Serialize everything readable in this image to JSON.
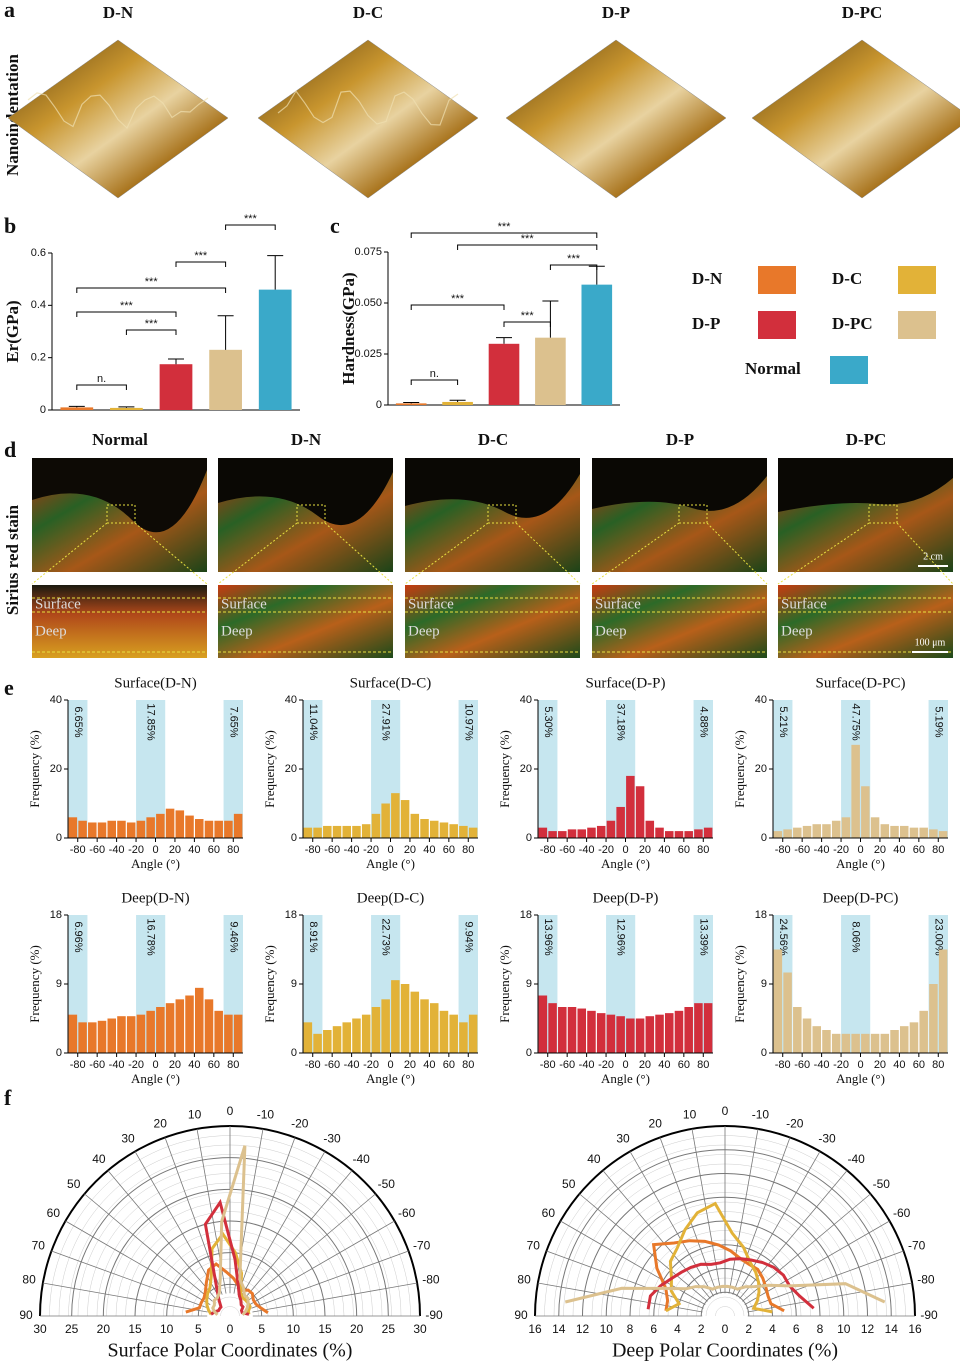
{
  "panel_a": {
    "label": "a",
    "ylabel": "Nanoindentation",
    "titles": [
      "D-N",
      "D-C",
      "D-P",
      "D-PC"
    ]
  },
  "panel_b": {
    "label": "b"
  },
  "panel_c": {
    "label": "c"
  },
  "panel_d": {
    "label": "d",
    "ylabel": "Sirius red stain",
    "titles": [
      "Normal",
      "D-N",
      "D-C",
      "D-P",
      "D-PC"
    ],
    "layers": [
      "Surface",
      "Deep"
    ],
    "scale_top": "2 cm",
    "scale_bottom": "100 μm"
  },
  "panel_e": {
    "label": "e"
  },
  "panel_f": {
    "label": "f"
  },
  "legend": {
    "items": [
      {
        "name": "D-N",
        "color": "#e8782a"
      },
      {
        "name": "D-C",
        "color": "#e2b238"
      },
      {
        "name": "D-P",
        "color": "#d22f3c"
      },
      {
        "name": "D-PC",
        "color": "#dcc18e"
      },
      {
        "name": "Normal",
        "color": "#3aa9c9"
      }
    ]
  },
  "chart_data": [
    {
      "type": "bar",
      "ylabel": "Er(GPa)",
      "values": [
        0.01,
        0.008,
        0.175,
        0.23,
        0.46
      ],
      "errors": [
        0.004,
        0.004,
        0.02,
        0.13,
        0.13
      ],
      "colors": [
        "#e8782a",
        "#e2b238",
        "#d22f3c",
        "#dcc18e",
        "#3aa9c9"
      ],
      "ylim": [
        0,
        0.6
      ],
      "yticks": [
        0,
        0.2,
        0.4,
        0.6
      ],
      "annotations": [
        "n.",
        "***",
        "***",
        "***",
        "***",
        "***"
      ]
    },
    {
      "type": "bar",
      "ylabel": "Hardness(GPa)",
      "values": [
        0.0008,
        0.0015,
        0.03,
        0.033,
        0.059
      ],
      "errors": [
        0.0004,
        0.0008,
        0.003,
        0.018,
        0.009
      ],
      "colors": [
        "#e8782a",
        "#e2b238",
        "#d22f3c",
        "#dcc18e",
        "#3aa9c9"
      ],
      "ylim": [
        0,
        0.075
      ],
      "yticks": [
        0,
        0.025,
        {
          "value": 0.05,
          "label": "0.050"
        },
        0.075
      ],
      "annotations": [
        "n.",
        "***",
        "***",
        "***",
        "***",
        "***"
      ]
    },
    {
      "type": "histogram",
      "title": "Surface(D-N)",
      "color": "#e8782a",
      "bins": [
        -90,
        -80,
        -70,
        -60,
        -50,
        -40,
        -30,
        -20,
        -10,
        0,
        10,
        20,
        30,
        40,
        50,
        60,
        70,
        80,
        90
      ],
      "values": [
        6,
        5,
        4.5,
        4.5,
        5,
        5,
        4.5,
        5,
        6,
        7,
        8.5,
        8,
        6.5,
        5.5,
        5,
        5,
        5,
        7
      ],
      "xlim": [
        -90,
        90
      ],
      "xticks": [
        -80,
        -60,
        -40,
        -20,
        0,
        20,
        40,
        60,
        80
      ],
      "ylim": [
        0,
        40
      ],
      "yticks": [
        0,
        20,
        40
      ],
      "xlabel": "Angle (°)",
      "ylabel": "Frequency (%)",
      "bands": [
        {
          "range": [
            -90,
            -70
          ],
          "label": "6.65%"
        },
        {
          "range": [
            -20,
            10
          ],
          "label": "17.85%"
        },
        {
          "range": [
            70,
            90
          ],
          "label": "7.65%"
        }
      ]
    },
    {
      "type": "histogram",
      "title": "Surface(D-C)",
      "color": "#e2b238",
      "bins": [
        -90,
        -80,
        -70,
        -60,
        -50,
        -40,
        -30,
        -20,
        -10,
        0,
        10,
        20,
        30,
        40,
        50,
        60,
        70,
        80,
        90
      ],
      "values": [
        3,
        3,
        3.5,
        3.5,
        3.5,
        3.5,
        4,
        7,
        10,
        13,
        11,
        7,
        5.5,
        5,
        4.5,
        4,
        3.5,
        3
      ],
      "xlim": [
        -90,
        90
      ],
      "xticks": [
        -80,
        -60,
        -40,
        -20,
        0,
        20,
        40,
        60,
        80
      ],
      "ylim": [
        0,
        40
      ],
      "yticks": [
        0,
        20,
        40
      ],
      "xlabel": "Angle (°)",
      "ylabel": "Frequency (%)",
      "bands": [
        {
          "range": [
            -90,
            -70
          ],
          "label": "11.04%"
        },
        {
          "range": [
            -20,
            10
          ],
          "label": "27.91%"
        },
        {
          "range": [
            70,
            90
          ],
          "label": "10.97%"
        }
      ]
    },
    {
      "type": "histogram",
      "title": "Surface(D-P)",
      "color": "#d22f3c",
      "bins": [
        -90,
        -80,
        -70,
        -60,
        -50,
        -40,
        -30,
        -20,
        -10,
        0,
        10,
        20,
        30,
        40,
        50,
        60,
        70,
        80,
        90
      ],
      "values": [
        3,
        2,
        2,
        2.5,
        2.5,
        3,
        3.5,
        5,
        9,
        18,
        15,
        5,
        3,
        2,
        2,
        2,
        2.5,
        3
      ],
      "xlim": [
        -90,
        90
      ],
      "xticks": [
        -80,
        -60,
        -40,
        -20,
        0,
        20,
        40,
        60,
        80
      ],
      "ylim": [
        0,
        40
      ],
      "yticks": [
        0,
        20,
        40
      ],
      "xlabel": "Angle (°)",
      "ylabel": "Frequency (%)",
      "bands": [
        {
          "range": [
            -90,
            -70
          ],
          "label": "5.30%"
        },
        {
          "range": [
            -20,
            10
          ],
          "label": "37.18%"
        },
        {
          "range": [
            70,
            90
          ],
          "label": "4.88%"
        }
      ]
    },
    {
      "type": "histogram",
      "title": "Surface(D-PC)",
      "color": "#dcc18e",
      "bins": [
        -90,
        -80,
        -70,
        -60,
        -50,
        -40,
        -30,
        -20,
        -10,
        0,
        10,
        20,
        30,
        40,
        50,
        60,
        70,
        80,
        90
      ],
      "values": [
        2,
        2.5,
        3,
        3.5,
        4,
        4,
        5,
        6,
        27,
        15,
        6,
        4,
        3.5,
        3.5,
        3,
        3,
        2.5,
        2
      ],
      "xlim": [
        -90,
        90
      ],
      "xticks": [
        -80,
        -60,
        -40,
        -20,
        0,
        20,
        40,
        60,
        80
      ],
      "ylim": [
        0,
        40
      ],
      "yticks": [
        0,
        20,
        40
      ],
      "xlabel": "Angle (°)",
      "ylabel": "Frequency (%)",
      "bands": [
        {
          "range": [
            -90,
            -70
          ],
          "label": "5.21%"
        },
        {
          "range": [
            -20,
            10
          ],
          "label": "47.75%"
        },
        {
          "range": [
            70,
            90
          ],
          "label": "5.19%"
        }
      ]
    },
    {
      "type": "histogram",
      "title": "Deep(D-N)",
      "color": "#e8782a",
      "bins": [
        -90,
        -80,
        -70,
        -60,
        -50,
        -40,
        -30,
        -20,
        -10,
        0,
        10,
        20,
        30,
        40,
        50,
        60,
        70,
        80,
        90
      ],
      "values": [
        5,
        4,
        4,
        4.2,
        4.5,
        4.8,
        4.8,
        5,
        5.5,
        6,
        6.5,
        7,
        7.5,
        8.5,
        7,
        5.5,
        5,
        5
      ],
      "xlim": [
        -90,
        90
      ],
      "xticks": [
        -80,
        -60,
        -40,
        -20,
        0,
        20,
        40,
        60,
        80
      ],
      "ylim": [
        0,
        18
      ],
      "yticks": [
        0,
        9,
        18
      ],
      "xlabel": "Angle (°)",
      "ylabel": "Frequency (%)",
      "bands": [
        {
          "range": [
            -90,
            -70
          ],
          "label": "6.96%"
        },
        {
          "range": [
            -20,
            10
          ],
          "label": "16.78%"
        },
        {
          "range": [
            70,
            90
          ],
          "label": "9.46%"
        }
      ]
    },
    {
      "type": "histogram",
      "title": "Deep(D-C)",
      "color": "#e2b238",
      "bins": [
        -90,
        -80,
        -70,
        -60,
        -50,
        -40,
        -30,
        -20,
        -10,
        0,
        10,
        20,
        30,
        40,
        50,
        60,
        70,
        80,
        90
      ],
      "values": [
        4,
        2.5,
        3,
        3.5,
        4,
        4.5,
        5,
        6,
        7,
        9.5,
        9,
        8,
        7,
        6.5,
        5.5,
        5,
        4,
        5
      ],
      "xlim": [
        -90,
        90
      ],
      "xticks": [
        -80,
        -60,
        -40,
        -20,
        0,
        20,
        40,
        60,
        80
      ],
      "ylim": [
        0,
        18
      ],
      "yticks": [
        0,
        9,
        18
      ],
      "xlabel": "Angle (°)",
      "ylabel": "Frequency (%)",
      "bands": [
        {
          "range": [
            -90,
            -70
          ],
          "label": "8.91%"
        },
        {
          "range": [
            -20,
            10
          ],
          "label": "22.73%"
        },
        {
          "range": [
            70,
            90
          ],
          "label": "9.94%"
        }
      ]
    },
    {
      "type": "histogram",
      "title": "Deep(D-P)",
      "color": "#d22f3c",
      "bins": [
        -90,
        -80,
        -70,
        -60,
        -50,
        -40,
        -30,
        -20,
        -10,
        0,
        10,
        20,
        30,
        40,
        50,
        60,
        70,
        80,
        90
      ],
      "values": [
        7.5,
        6.5,
        6,
        6,
        5.8,
        5.5,
        5.2,
        5,
        4.8,
        4.5,
        4.5,
        4.8,
        5,
        5.2,
        5.5,
        6,
        6.5,
        6.5
      ],
      "xlim": [
        -90,
        90
      ],
      "xticks": [
        -80,
        -60,
        -40,
        -20,
        0,
        20,
        40,
        60,
        80
      ],
      "ylim": [
        0,
        18
      ],
      "yticks": [
        0,
        9,
        18
      ],
      "xlabel": "Angle (°)",
      "ylabel": "Frequency (%)",
      "bands": [
        {
          "range": [
            -90,
            -70
          ],
          "label": "13.96%"
        },
        {
          "range": [
            -20,
            10
          ],
          "label": "12.96%"
        },
        {
          "range": [
            70,
            90
          ],
          "label": "13.39%"
        }
      ]
    },
    {
      "type": "histogram",
      "title": "Deep(D-PC)",
      "color": "#dcc18e",
      "bins": [
        -90,
        -80,
        -70,
        -60,
        -50,
        -40,
        -30,
        -20,
        -10,
        0,
        10,
        20,
        30,
        40,
        50,
        60,
        70,
        80,
        90
      ],
      "values": [
        13.5,
        10.5,
        6,
        4.5,
        3.5,
        3,
        2.5,
        2.5,
        2.5,
        2.5,
        2.5,
        2.5,
        3,
        3.5,
        4,
        5.5,
        9,
        13.5
      ],
      "xlim": [
        -90,
        90
      ],
      "xticks": [
        -80,
        -60,
        -40,
        -20,
        0,
        20,
        40,
        60,
        80
      ],
      "ylim": [
        0,
        18
      ],
      "yticks": [
        0,
        9,
        18
      ],
      "xlabel": "Angle (°)",
      "ylabel": "Frequency (%)",
      "bands": [
        {
          "range": [
            -90,
            -70
          ],
          "label": "24.56%"
        },
        {
          "range": [
            -20,
            10
          ],
          "label": "8.06%"
        },
        {
          "range": [
            70,
            90
          ],
          "label": "23.00%"
        }
      ]
    },
    {
      "type": "polar",
      "xlabel": "Surface Polar Coordinates (%)",
      "angles": [
        -85,
        -75,
        -65,
        -55,
        -45,
        -35,
        -25,
        -15,
        -5,
        5,
        15,
        25,
        35,
        45,
        55,
        65,
        75,
        85
      ],
      "rlim": [
        0,
        30
      ],
      "rticks": [
        0,
        5,
        10,
        15,
        20,
        25,
        30
      ],
      "thetaticks": [
        90,
        80,
        70,
        60,
        50,
        40,
        30,
        20,
        10,
        0,
        -10,
        -20,
        -30,
        -40,
        -50,
        -60,
        -70,
        -80,
        -90
      ],
      "series": [
        {
          "color": "#e8782a",
          "values": [
            6,
            5,
            4.5,
            4.5,
            5,
            5,
            4.5,
            5,
            6,
            7,
            8.5,
            8,
            6.5,
            5.5,
            5,
            5,
            5,
            7
          ]
        },
        {
          "color": "#e2b238",
          "values": [
            3,
            3,
            3.5,
            3.5,
            3.5,
            3.5,
            4,
            7,
            10,
            13,
            11,
            7,
            5.5,
            5,
            4.5,
            4,
            3.5,
            3
          ]
        },
        {
          "color": "#d22f3c",
          "values": [
            3,
            2,
            2,
            2.5,
            2.5,
            3,
            3.5,
            5,
            9,
            18,
            15,
            5,
            3,
            2,
            2,
            2,
            2.5,
            3
          ]
        },
        {
          "color": "#dcc18e",
          "values": [
            2,
            2.5,
            3,
            3.5,
            4,
            4,
            5,
            6,
            27,
            15,
            6,
            4,
            3.5,
            3.5,
            3,
            3,
            2.5,
            2
          ]
        }
      ]
    },
    {
      "type": "polar",
      "xlabel": "Deep Polar Coordinates (%)",
      "angles": [
        -85,
        -75,
        -65,
        -55,
        -45,
        -35,
        -25,
        -15,
        -5,
        5,
        15,
        25,
        35,
        45,
        55,
        65,
        75,
        85
      ],
      "rlim": [
        0,
        16
      ],
      "rticks": [
        0,
        2,
        4,
        6,
        8,
        10,
        12,
        14,
        16
      ],
      "thetaticks": [
        90,
        80,
        70,
        60,
        50,
        40,
        30,
        20,
        10,
        0,
        -10,
        -20,
        -30,
        -40,
        -50,
        -60,
        -70,
        -80,
        -90
      ],
      "series": [
        {
          "color": "#e8782a",
          "values": [
            5,
            4,
            4,
            4.2,
            4.5,
            4.8,
            4.8,
            5,
            5.5,
            6,
            6.5,
            7,
            7.5,
            8.5,
            7,
            5.5,
            5,
            5
          ]
        },
        {
          "color": "#e2b238",
          "values": [
            4,
            2.5,
            3,
            3.5,
            4,
            4.5,
            5,
            6,
            7,
            9.5,
            9,
            8,
            7,
            6.5,
            5.5,
            5,
            4,
            5
          ]
        },
        {
          "color": "#d22f3c",
          "values": [
            7.5,
            6.5,
            6,
            6,
            5.8,
            5.5,
            5.2,
            5,
            4.8,
            4.5,
            4.5,
            4.8,
            5,
            5.2,
            5.5,
            6,
            6.5,
            6.5
          ]
        },
        {
          "color": "#dcc18e",
          "values": [
            13.5,
            10.5,
            6,
            4.5,
            3.5,
            3,
            2.5,
            2.5,
            2.5,
            2.5,
            2.5,
            2.5,
            3,
            3.5,
            4,
            5.5,
            9,
            13.5
          ]
        }
      ]
    }
  ]
}
